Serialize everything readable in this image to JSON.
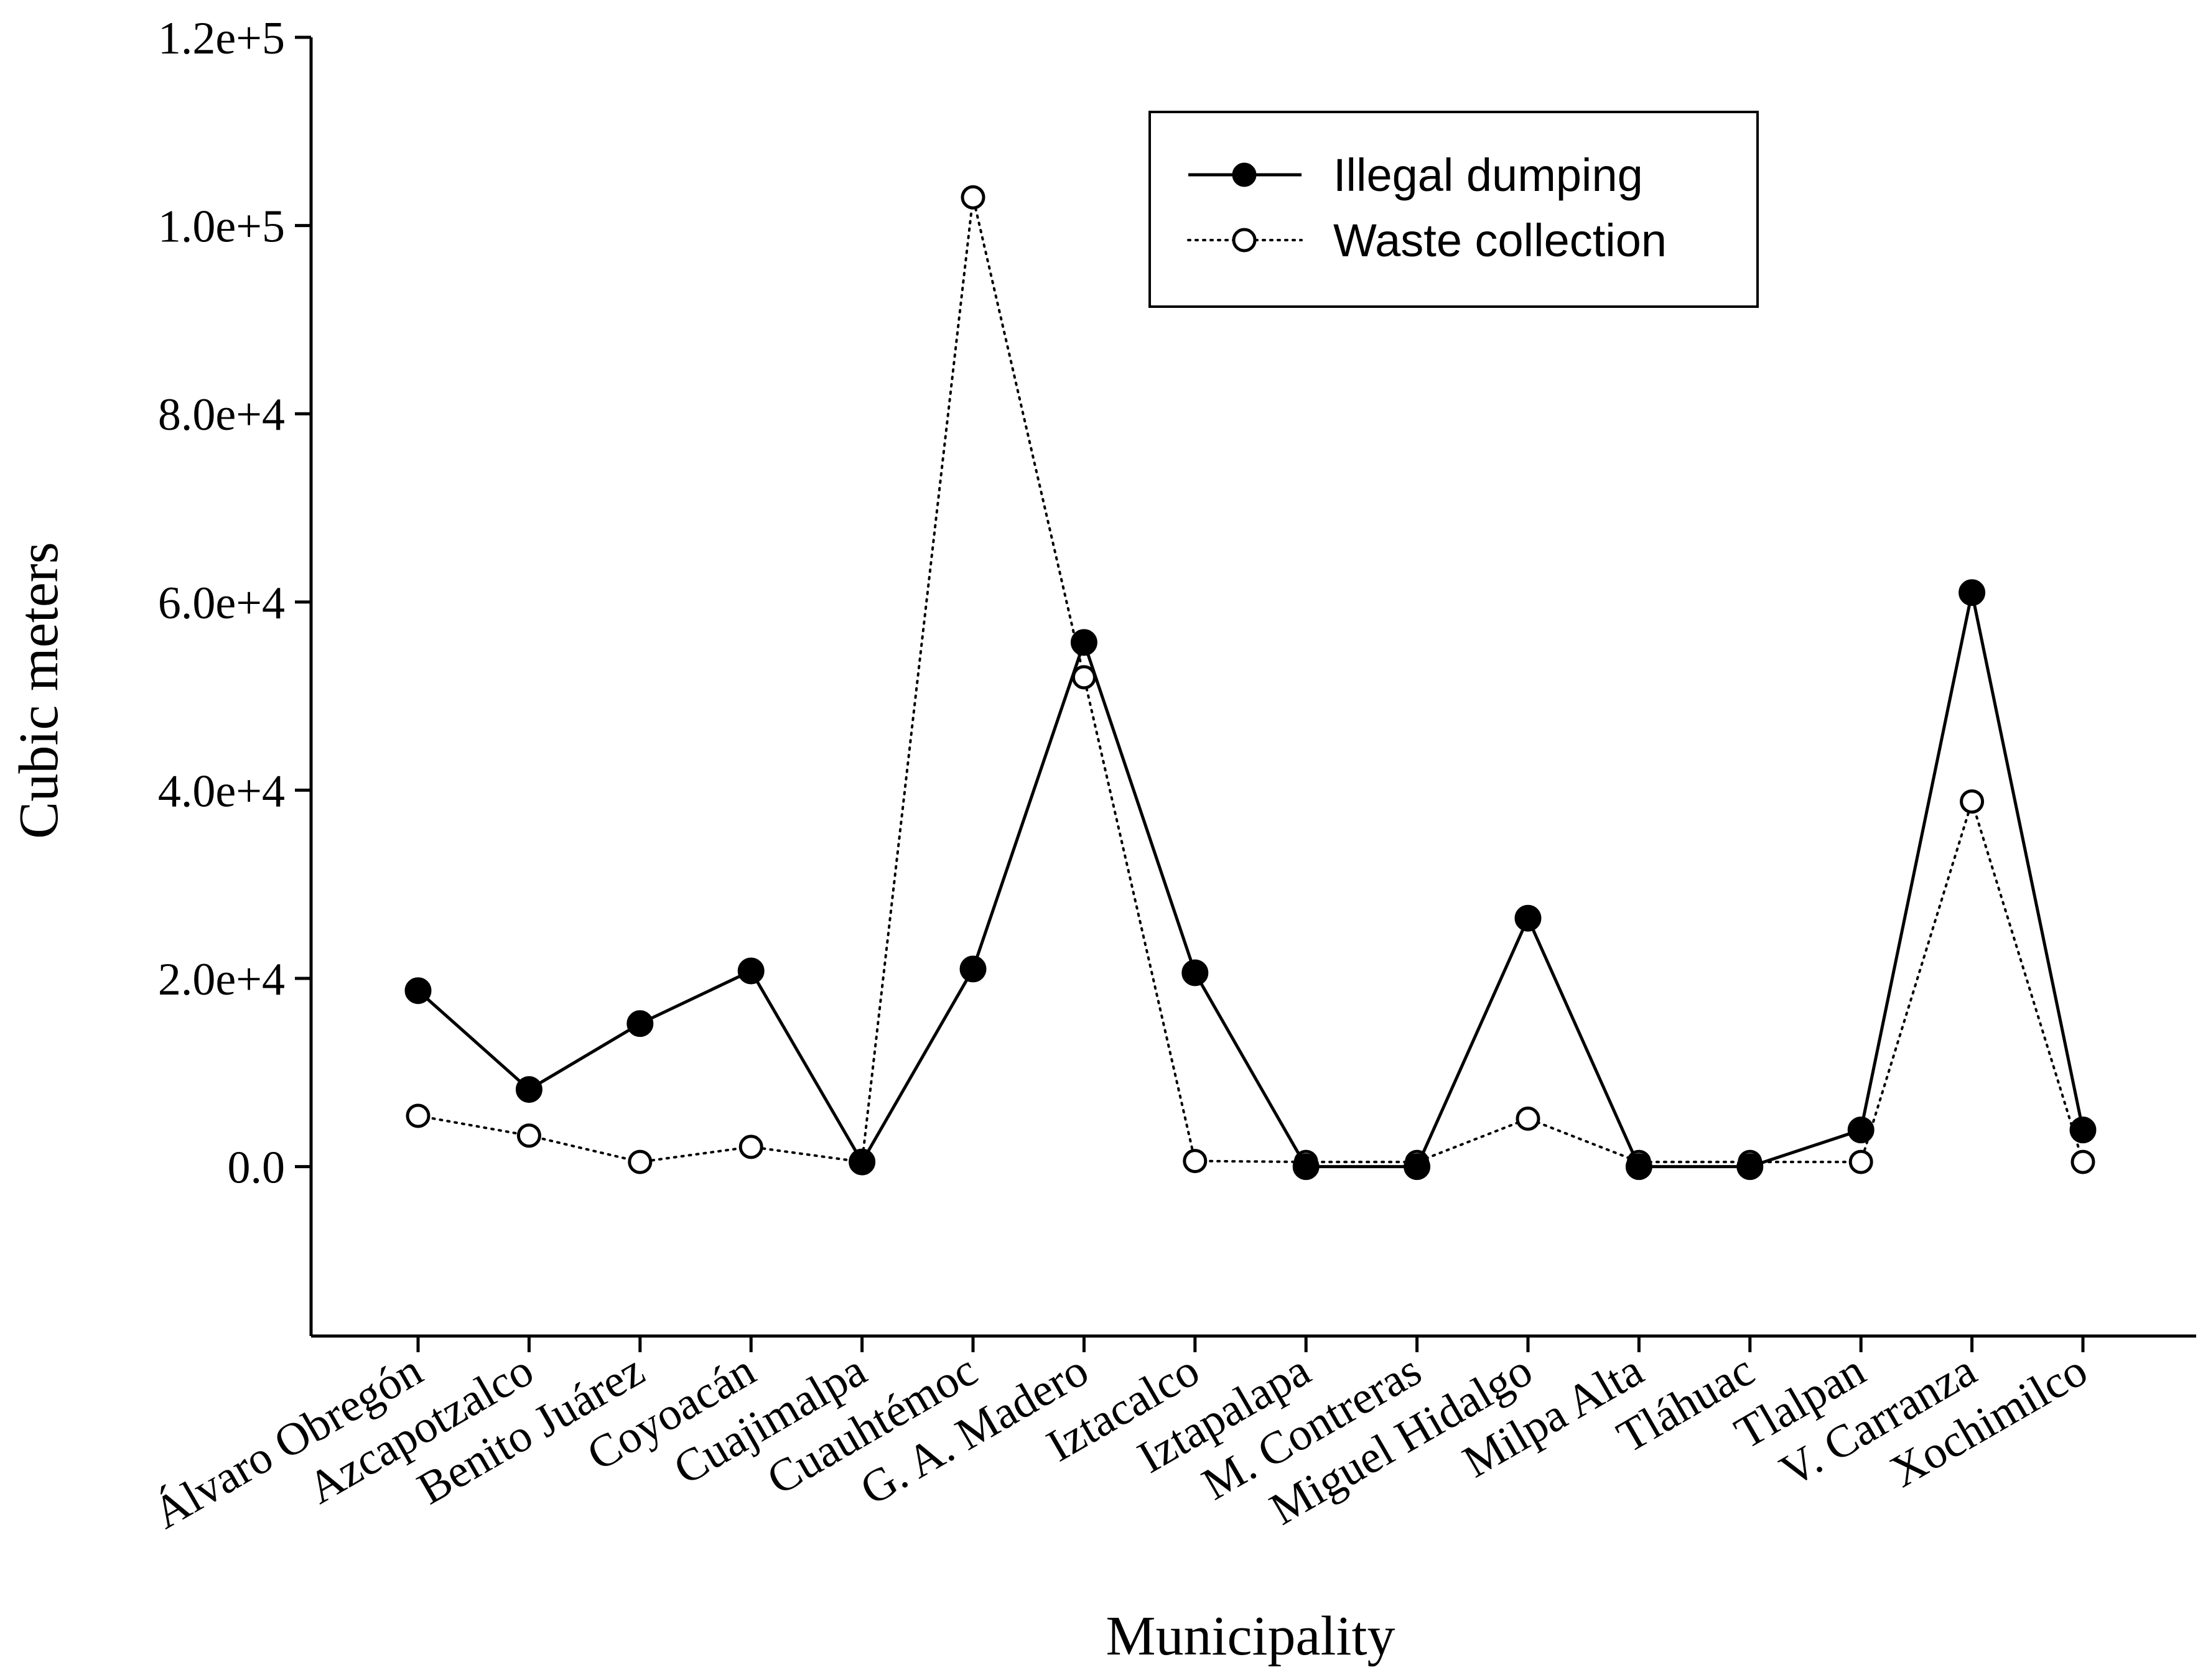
{
  "chart_data": {
    "type": "line",
    "title": "",
    "xlabel": "Municipality",
    "ylabel": "Cubic meters",
    "ylim": [
      -18000,
      120000
    ],
    "yticks": [
      0,
      20000,
      40000,
      60000,
      80000,
      100000,
      120000
    ],
    "ytick_labels": [
      "0.0",
      "2.0e+4",
      "4.0e+4",
      "6.0e+4",
      "8.0e+4",
      "1.0e+5",
      "1.2e+5"
    ],
    "categories": [
      "Álvaro Obregón",
      "Azcapotzalco",
      "Benito Juárez",
      "Coyoacán",
      "Cuajimalpa",
      "Cuauhtémoc",
      "G. A. Madero",
      "Iztacalco",
      "Iztapalapa",
      "M. Contreras",
      "Miguel Hidalgo",
      "Milpa Alta",
      "Tláhuac",
      "Tlalpan",
      "V. Carranza",
      "Xochimilco"
    ],
    "series": [
      {
        "name": "Illegal dumping",
        "marker": "filled-circle",
        "line": "solid",
        "values": [
          18700,
          8200,
          15200,
          20800,
          500,
          21000,
          55700,
          20600,
          0,
          0,
          26400,
          0,
          0,
          3900,
          61000,
          3900
        ]
      },
      {
        "name": "Waste collection",
        "marker": "open-circle",
        "line": "dotted",
        "values": [
          5400,
          3300,
          500,
          2100,
          500,
          103000,
          52000,
          600,
          500,
          500,
          5100,
          500,
          500,
          500,
          38800,
          500
        ]
      }
    ],
    "legend": {
      "position": "top-right",
      "entries": [
        "Illegal dumping",
        "Waste collection"
      ]
    },
    "grid": false,
    "colors": {
      "line": "#000000",
      "background": "#ffffff",
      "open_marker_fill": "#ffffff"
    }
  }
}
